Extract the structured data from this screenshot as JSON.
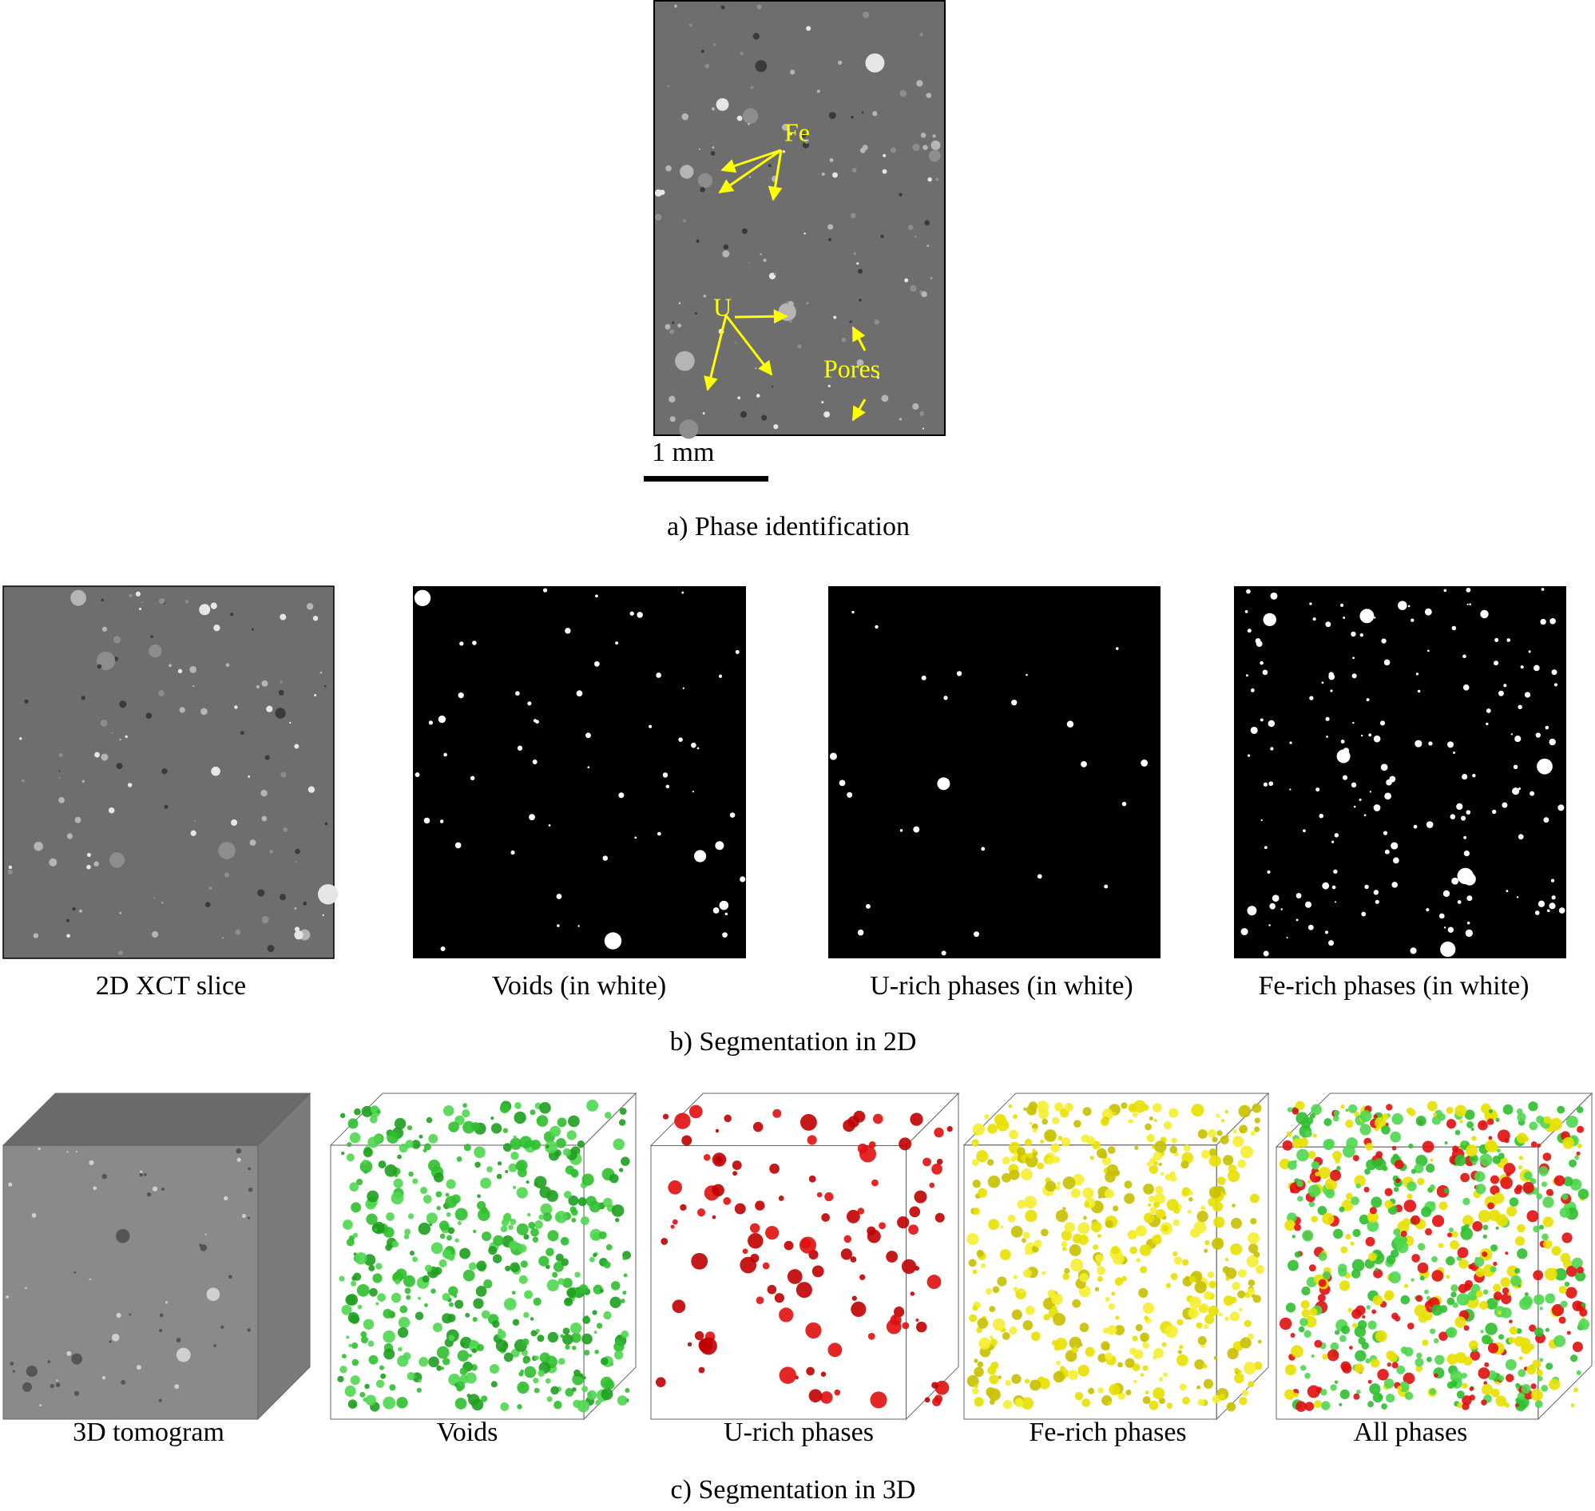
{
  "panel_a": {
    "labels": [
      "Fe",
      "U",
      "Pores"
    ],
    "scale_bar": "1 mm",
    "caption": "a) Phase identification"
  },
  "panel_b": {
    "images": [
      "2D XCT slice",
      "Voids (in white)",
      "U-rich phases (in white)",
      "Fe-rich phases (in white)"
    ],
    "caption": "b) Segmentation in 2D"
  },
  "panel_c": {
    "images": [
      "3D tomogram",
      "Voids",
      "U-rich phases",
      "Fe-rich phases",
      "All phases"
    ],
    "caption": "c) Segmentation in 3D"
  }
}
